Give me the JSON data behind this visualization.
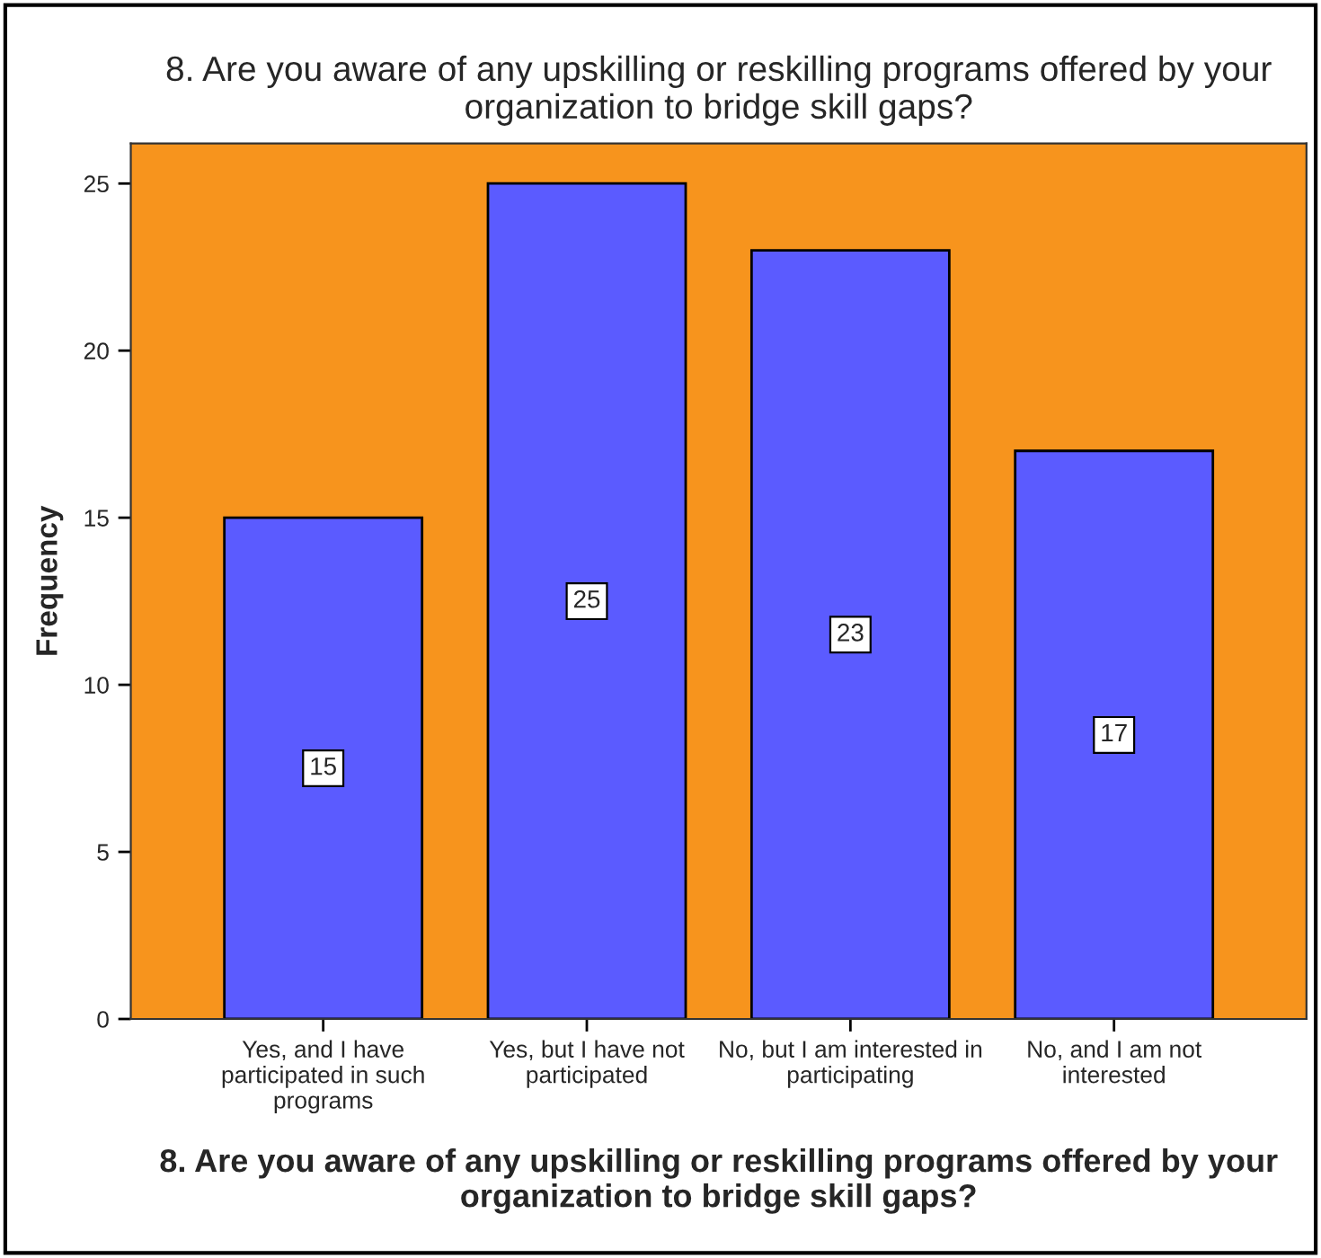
{
  "chart_data": {
    "type": "bar",
    "title": "8. Are you aware of any upskilling or reskilling programs offered by your\norganization to bridge skill gaps?",
    "xlabel": "8. Are you aware of any upskilling or reskilling programs offered by your\norganization to bridge skill gaps?",
    "ylabel": "Frequency",
    "categories": [
      "Yes, and I have\nparticipated in such\nprograms",
      "Yes, but I have not\nparticipated",
      "No, but I am interested in\nparticipating",
      "No, and I am not\ninterested"
    ],
    "values": [
      15,
      25,
      23,
      17
    ],
    "color": "#5b5bff",
    "ylim": [
      0,
      26.2
    ],
    "yticks": [
      0,
      5,
      10,
      15,
      20,
      25
    ],
    "data_labels": true,
    "bands": [
      {
        "axis": "y",
        "from": 0,
        "to": 26.2,
        "color": "#f7941d"
      }
    ],
    "grid": false,
    "legend": false
  }
}
